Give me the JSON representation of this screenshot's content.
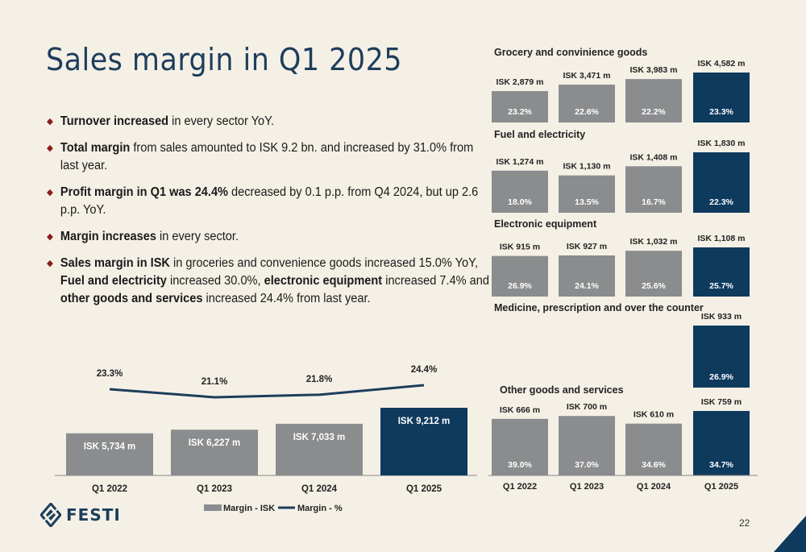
{
  "title": "Sales margin in Q1 2025",
  "bullets": [
    {
      "parts": [
        {
          "t": "Turnover increased",
          "b": true
        },
        {
          "t": " in every sector YoY.",
          "b": false
        }
      ]
    },
    {
      "parts": [
        {
          "t": "Total margin",
          "b": true
        },
        {
          "t": " from sales amounted to ISK 9.2 bn. and increased by 31.0% from last year.",
          "b": false
        }
      ]
    },
    {
      "parts": [
        {
          "t": "Profit margin in Q1 was 24.4%",
          "b": true
        },
        {
          "t": " decreased by 0.1 p.p. from Q4 2024, but up 2.6 p.p. YoY.",
          "b": false
        }
      ]
    },
    {
      "parts": [
        {
          "t": "Margin increases",
          "b": true
        },
        {
          "t": " in every sector.",
          "b": false
        }
      ]
    },
    {
      "parts": [
        {
          "t": "Sales margin in ISK",
          "b": true
        },
        {
          "t": " in groceries and convenience goods increased 15.0% YoY, ",
          "b": false
        },
        {
          "t": "Fuel and electricity",
          "b": true
        },
        {
          "t": " increased 30.0%, ",
          "b": false
        },
        {
          "t": "electronic equipment",
          "b": true
        },
        {
          "t": " increased 7.4% and ",
          "b": false
        },
        {
          "t": "other goods and services",
          "b": true
        },
        {
          "t": " increased 24.4% from last year.",
          "b": false
        }
      ]
    }
  ],
  "logo_text": "FESTI",
  "page_number": "22",
  "colors": {
    "gray": "#8a8c8e",
    "navy": "#0e3a5e",
    "line": "#1d3e5c",
    "bullet": "#8b1c1c"
  },
  "chart_data": [
    {
      "type": "bar",
      "name": "main",
      "categories": [
        "Q1 2022",
        "Q1 2023",
        "Q1 2024",
        "Q1 2025"
      ],
      "series": [
        {
          "name": "Margin - ISK",
          "type": "bar",
          "values": [
            5734,
            6227,
            7033,
            9212
          ],
          "labels": [
            "ISK 5,734 m",
            "ISK 6,227 m",
            "ISK 7,033 m",
            "ISK 9,212 m"
          ]
        },
        {
          "name": "Margin - %",
          "type": "line",
          "values": [
            23.3,
            21.1,
            21.8,
            24.4
          ],
          "labels": [
            "23.3%",
            "21.1%",
            "21.8%",
            "24.4%"
          ]
        }
      ],
      "legend": "bottom",
      "highlight_last": true
    },
    {
      "type": "bar",
      "title": "Grocery and convinience goods",
      "categories": [
        "Q1 2022",
        "Q1 2023",
        "Q1 2024",
        "Q1 2025"
      ],
      "values": [
        2879,
        3471,
        3983,
        4582
      ],
      "value_labels": [
        "ISK 2,879 m",
        "ISK 3,471 m",
        "ISK 3,983 m",
        "ISK 4,582 m"
      ],
      "pct_labels": [
        "23.2%",
        "22.6%",
        "22.2%",
        "23.3%"
      ]
    },
    {
      "type": "bar",
      "title": "Fuel and electricity",
      "categories": [
        "Q1 2022",
        "Q1 2023",
        "Q1 2024",
        "Q1 2025"
      ],
      "values": [
        1274,
        1130,
        1408,
        1830
      ],
      "value_labels": [
        "ISK 1,274 m",
        "ISK 1,130 m",
        "ISK 1,408 m",
        "ISK 1,830 m"
      ],
      "pct_labels": [
        "18.0%",
        "13.5%",
        "16.7%",
        "22.3%"
      ]
    },
    {
      "type": "bar",
      "title": "Electronic equipment",
      "categories": [
        "Q1 2022",
        "Q1 2023",
        "Q1 2024",
        "Q1 2025"
      ],
      "values": [
        915,
        927,
        1032,
        1108
      ],
      "value_labels": [
        "ISK 915 m",
        "ISK 927 m",
        "ISK 1,032 m",
        "ISK 1,108 m"
      ],
      "pct_labels": [
        "26.9%",
        "24.1%",
        "25.6%",
        "25.7%"
      ]
    },
    {
      "type": "bar",
      "title": "Medicine, prescription and over the counter",
      "categories": [
        "Q1 2022",
        "Q1 2023",
        "Q1 2024",
        "Q1 2025"
      ],
      "values": [
        null,
        null,
        null,
        933
      ],
      "value_labels": [
        "",
        "",
        "",
        "ISK 933 m"
      ],
      "pct_labels": [
        "",
        "",
        "",
        "26.9%"
      ]
    },
    {
      "type": "bar",
      "title": "Other goods and services",
      "categories": [
        "Q1 2022",
        "Q1 2023",
        "Q1 2024",
        "Q1 2025"
      ],
      "values": [
        666,
        700,
        610,
        759
      ],
      "value_labels": [
        "ISK 666 m",
        "ISK 700 m",
        "ISK 610 m",
        "ISK 759 m"
      ],
      "pct_labels": [
        "39.0%",
        "37.0%",
        "34.6%",
        "34.7%"
      ]
    }
  ]
}
